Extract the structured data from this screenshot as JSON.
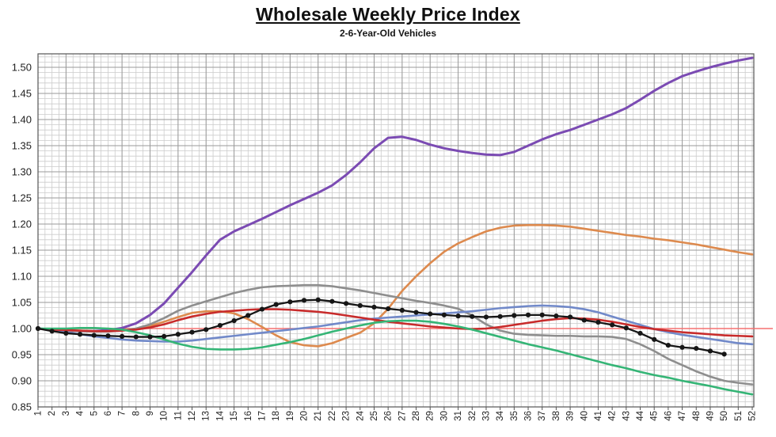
{
  "title": "Wholesale Weekly Price Index",
  "subtitle": "2-6-Year-Old Vehicles",
  "chart_data": {
    "type": "line",
    "xlabel": "",
    "ylabel": "",
    "x": [
      1,
      2,
      3,
      4,
      5,
      6,
      7,
      8,
      9,
      10,
      11,
      12,
      13,
      14,
      15,
      16,
      17,
      18,
      19,
      20,
      21,
      22,
      23,
      24,
      25,
      26,
      27,
      28,
      29,
      30,
      31,
      32,
      33,
      34,
      35,
      36,
      37,
      38,
      39,
      40,
      41,
      42,
      43,
      44,
      45,
      46,
      47,
      48,
      49,
      50,
      51,
      52
    ],
    "ylim": [
      0.85,
      1.526
    ],
    "y_ticks": [
      "0.85",
      "0.90",
      "0.95",
      "1.00",
      "1.05",
      "1.10",
      "1.15",
      "1.20",
      "1.25",
      "1.30",
      "1.35",
      "1.40",
      "1.45",
      "1.50"
    ],
    "grid": "minor and major gridlines on",
    "legend": "none",
    "reference_line": {
      "value": 1.0,
      "color": "#f57070"
    },
    "series": [
      {
        "name": "purple-line",
        "color": "#7b4bb3",
        "width": 3,
        "values": [
          1.0,
          0.998,
          0.996,
          0.995,
          0.995,
          0.997,
          1.001,
          1.01,
          1.026,
          1.048,
          1.078,
          1.108,
          1.14,
          1.17,
          1.186,
          1.198,
          1.21,
          1.223,
          1.236,
          1.248,
          1.26,
          1.274,
          1.294,
          1.318,
          1.345,
          1.365,
          1.367,
          1.361,
          1.352,
          1.345,
          1.34,
          1.336,
          1.333,
          1.332,
          1.338,
          1.35,
          1.362,
          1.372,
          1.38,
          1.39,
          1.4,
          1.41,
          1.422,
          1.438,
          1.455,
          1.47,
          1.483,
          1.492,
          1.5,
          1.507,
          1.513,
          1.518
        ]
      },
      {
        "name": "orange-line",
        "color": "#dd8a4e",
        "width": 2.6,
        "values": [
          1.0,
          0.998,
          0.997,
          0.996,
          0.995,
          0.995,
          0.997,
          1.0,
          1.005,
          1.013,
          1.022,
          1.03,
          1.033,
          1.033,
          1.029,
          1.018,
          1.003,
          0.987,
          0.974,
          0.968,
          0.966,
          0.972,
          0.982,
          0.992,
          1.01,
          1.038,
          1.072,
          1.1,
          1.125,
          1.147,
          1.163,
          1.175,
          1.186,
          1.193,
          1.197,
          1.198,
          1.198,
          1.197,
          1.195,
          1.191,
          1.187,
          1.183,
          1.179,
          1.176,
          1.172,
          1.169,
          1.165,
          1.161,
          1.156,
          1.151,
          1.146,
          1.142
        ]
      },
      {
        "name": "gray-line",
        "color": "#8e8e8e",
        "width": 2.6,
        "values": [
          1.0,
          0.998,
          0.996,
          0.995,
          0.994,
          0.994,
          0.996,
          1.0,
          1.008,
          1.02,
          1.034,
          1.044,
          1.052,
          1.06,
          1.068,
          1.074,
          1.079,
          1.081,
          1.082,
          1.083,
          1.083,
          1.081,
          1.077,
          1.073,
          1.068,
          1.063,
          1.058,
          1.053,
          1.049,
          1.044,
          1.038,
          1.025,
          1.008,
          0.996,
          0.99,
          0.988,
          0.987,
          0.986,
          0.986,
          0.985,
          0.985,
          0.984,
          0.98,
          0.97,
          0.957,
          0.942,
          0.93,
          0.918,
          0.908,
          0.9,
          0.896,
          0.893
        ]
      },
      {
        "name": "blue-line",
        "color": "#7189c9",
        "width": 2.6,
        "values": [
          1.0,
          0.997,
          0.993,
          0.989,
          0.985,
          0.982,
          0.979,
          0.977,
          0.976,
          0.975,
          0.975,
          0.977,
          0.98,
          0.983,
          0.986,
          0.989,
          0.992,
          0.995,
          0.998,
          1.001,
          1.004,
          1.008,
          1.012,
          1.016,
          1.019,
          1.021,
          1.023,
          1.025,
          1.027,
          1.029,
          1.031,
          1.033,
          1.036,
          1.039,
          1.041,
          1.043,
          1.044,
          1.043,
          1.041,
          1.037,
          1.031,
          1.023,
          1.015,
          1.007,
          0.999,
          0.993,
          0.988,
          0.984,
          0.98,
          0.976,
          0.972,
          0.97
        ]
      },
      {
        "name": "red-line",
        "color": "#c82b2b",
        "width": 2.6,
        "values": [
          1.0,
          0.998,
          0.997,
          0.996,
          0.995,
          0.995,
          0.996,
          0.998,
          1.002,
          1.008,
          1.016,
          1.023,
          1.028,
          1.032,
          1.034,
          1.036,
          1.037,
          1.037,
          1.036,
          1.034,
          1.032,
          1.029,
          1.025,
          1.021,
          1.017,
          1.013,
          1.01,
          1.007,
          1.004,
          1.002,
          1.0,
          0.999,
          1.0,
          1.003,
          1.007,
          1.011,
          1.015,
          1.018,
          1.02,
          1.019,
          1.017,
          1.013,
          1.008,
          1.003,
          0.999,
          0.996,
          0.993,
          0.991,
          0.989,
          0.987,
          0.986,
          0.985
        ]
      },
      {
        "name": "green-line",
        "color": "#35b576",
        "width": 2.6,
        "values": [
          1.0,
          1.0,
          1.0,
          1.001,
          1.001,
          1.0,
          0.998,
          0.993,
          0.987,
          0.979,
          0.971,
          0.965,
          0.961,
          0.96,
          0.96,
          0.961,
          0.964,
          0.969,
          0.974,
          0.98,
          0.987,
          0.994,
          1.0,
          1.006,
          1.011,
          1.014,
          1.015,
          1.015,
          1.013,
          1.009,
          1.004,
          0.998,
          0.991,
          0.984,
          0.977,
          0.97,
          0.964,
          0.958,
          0.951,
          0.944,
          0.937,
          0.93,
          0.924,
          0.917,
          0.911,
          0.906,
          0.9,
          0.895,
          0.89,
          0.884,
          0.879,
          0.874
        ]
      },
      {
        "name": "black-marker-line",
        "color": "#161616",
        "width": 2.3,
        "markers": true,
        "values": [
          1.0,
          0.995,
          0.991,
          0.989,
          0.987,
          0.986,
          0.985,
          0.984,
          0.984,
          0.985,
          0.989,
          0.993,
          0.998,
          1.006,
          1.015,
          1.025,
          1.037,
          1.046,
          1.051,
          1.054,
          1.055,
          1.052,
          1.048,
          1.044,
          1.041,
          1.038,
          1.035,
          1.031,
          1.028,
          1.026,
          1.024,
          1.023,
          1.022,
          1.023,
          1.025,
          1.026,
          1.026,
          1.024,
          1.022,
          1.016,
          1.012,
          1.007,
          1.001,
          0.991,
          0.979,
          0.968,
          0.964,
          0.962,
          0.957,
          0.951
        ]
      }
    ]
  }
}
